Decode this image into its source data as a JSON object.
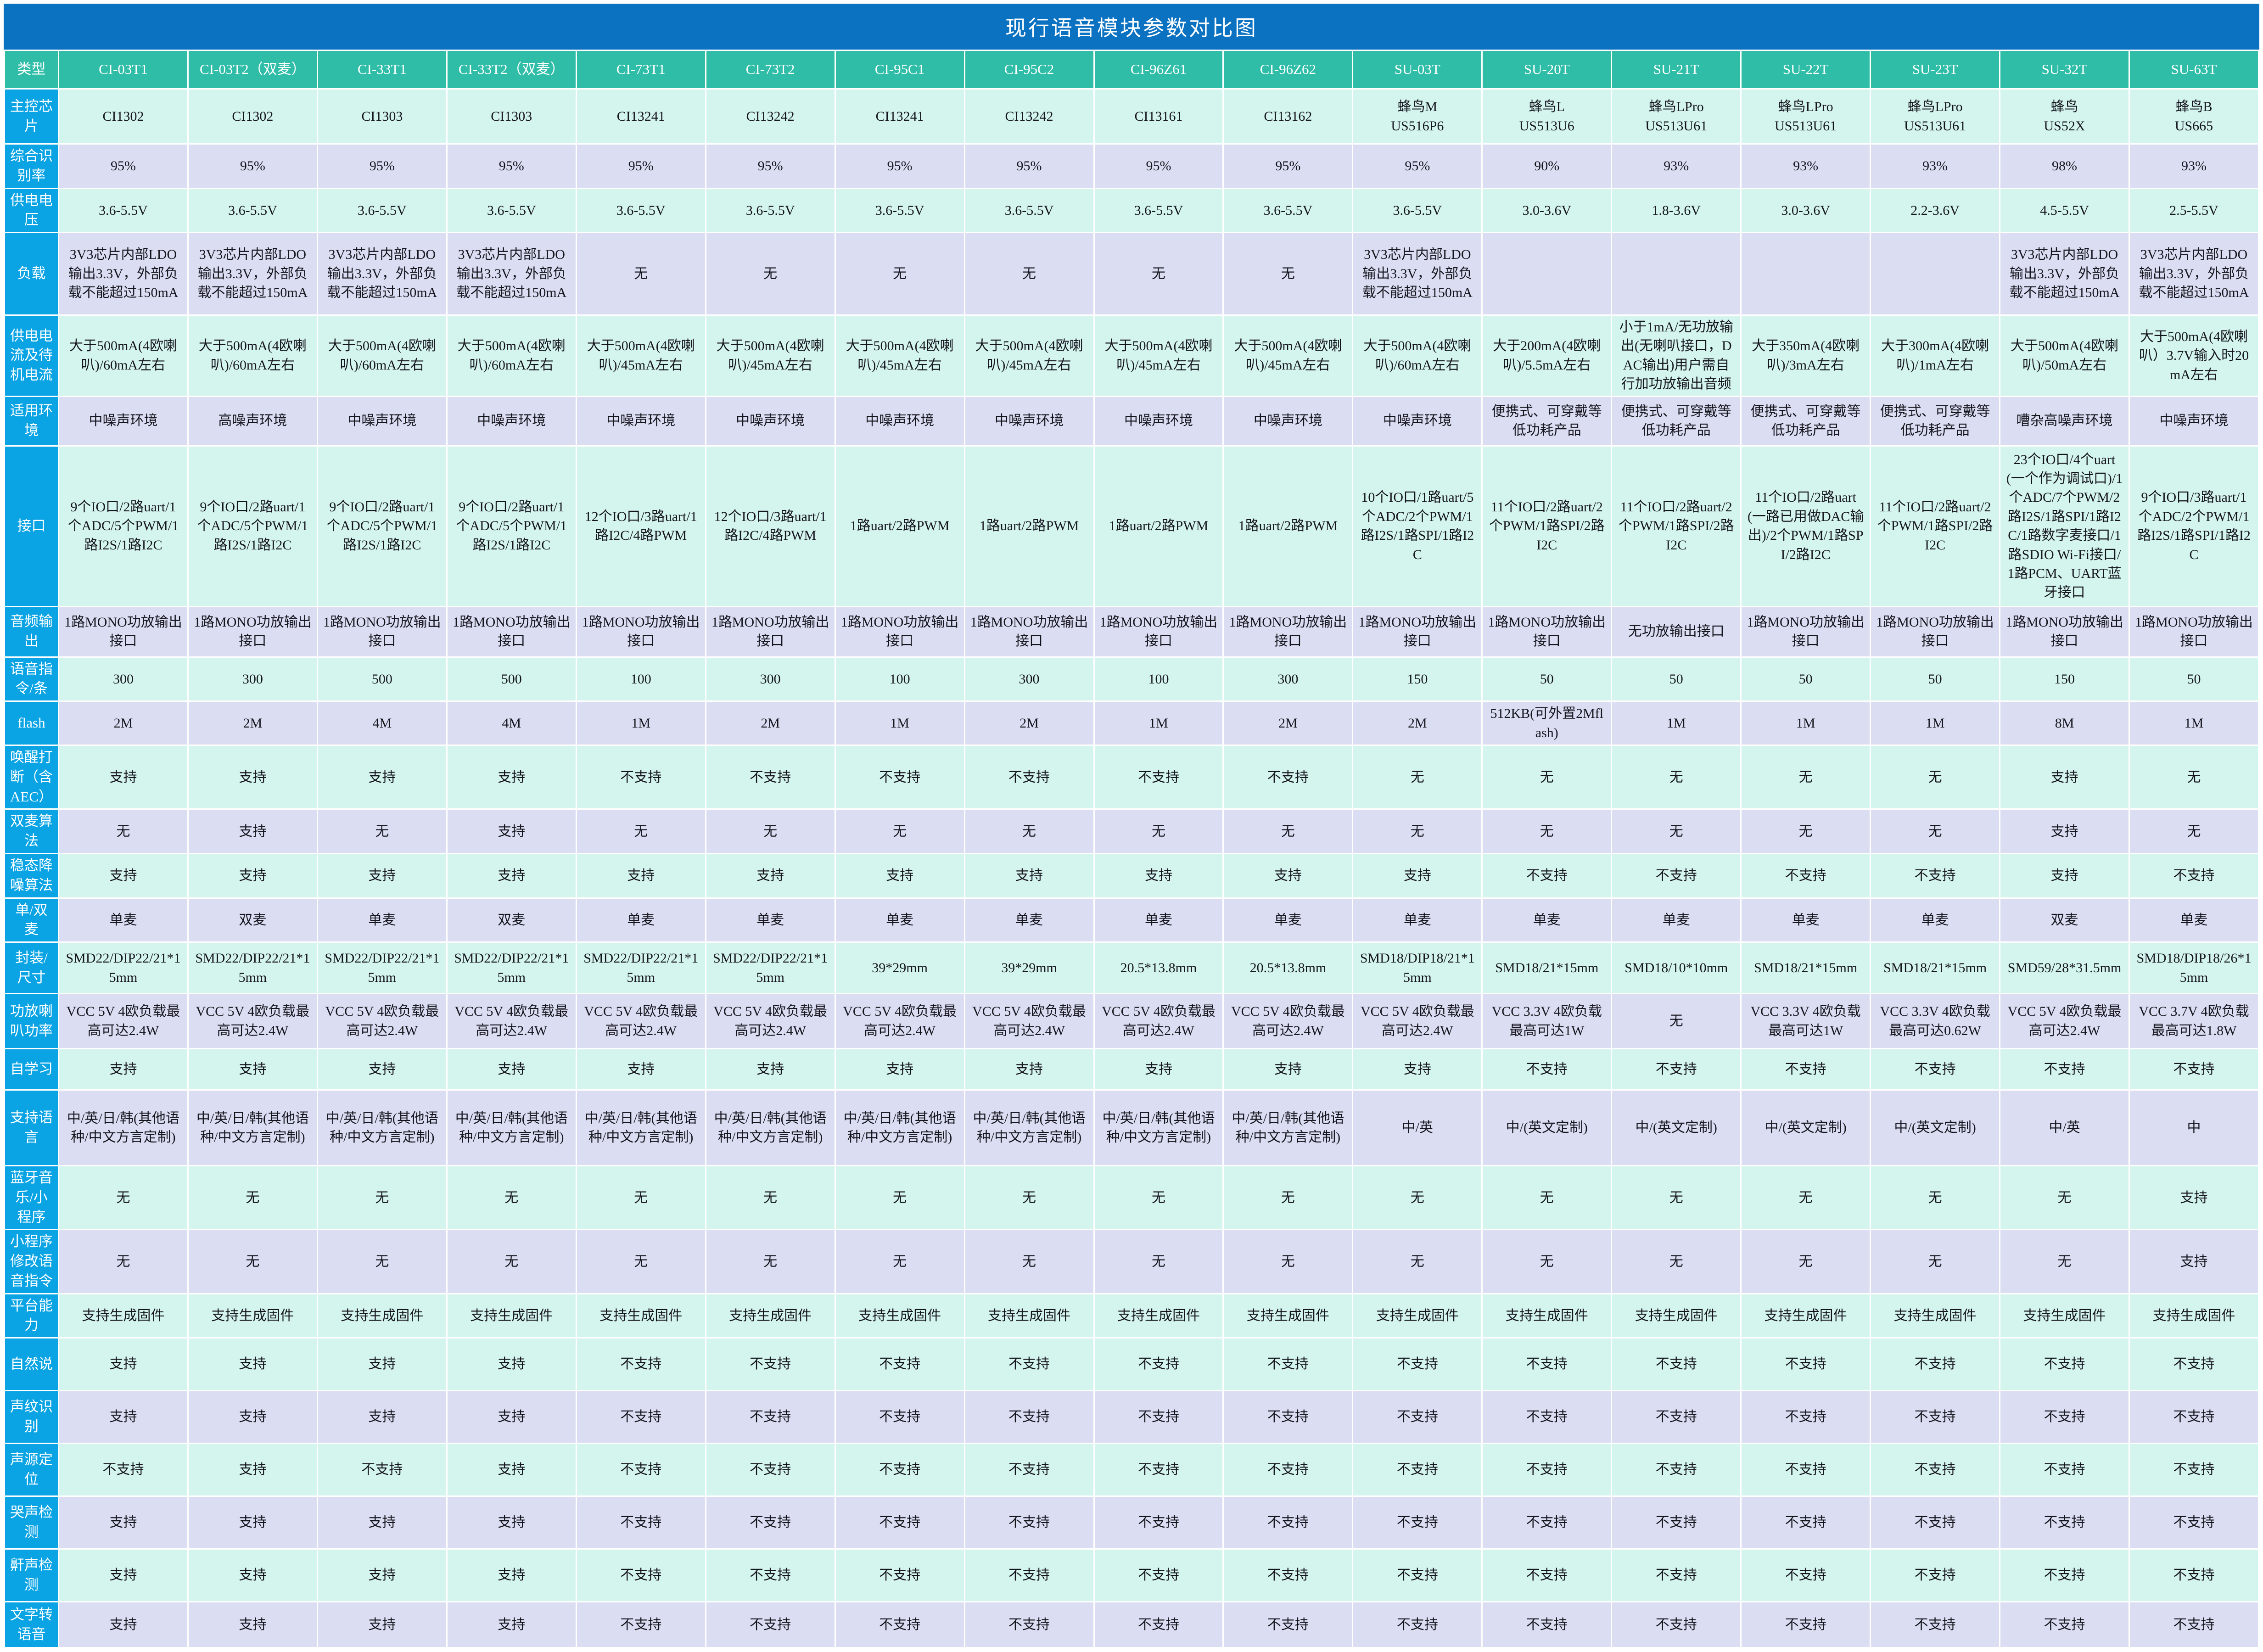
{
  "title": "现行语音模块参数对比图",
  "colors": {
    "title_bar": "#0B71C1",
    "header_teal": "#2FBDA8",
    "row_label_blue": "#0AA3E4",
    "cell_mint": "#D4F4EE",
    "cell_lavender": "#DBDDF2",
    "grid_white": "#FFFFFF",
    "text_dark": "#15151E"
  },
  "chart_data": {
    "type": "table",
    "title": "现行语音模块参数对比图",
    "corner_label": "类型",
    "columns": [
      "CI-03T1",
      "CI-03T2（双麦）",
      "CI-33T1",
      "CI-33T2（双麦）",
      "CI-73T1",
      "CI-73T2",
      "CI-95C1",
      "CI-95C2",
      "CI-96Z61",
      "CI-96Z62",
      "SU-03T",
      "SU-20T",
      "SU-21T",
      "SU-22T",
      "SU-23T",
      "SU-32T",
      "SU-63T"
    ],
    "rows": [
      {
        "label": "主控芯片",
        "values": [
          "CI1302",
          "CI1302",
          "CI1303",
          "CI1303",
          "CI13241",
          "CI13242",
          "CI13241",
          "CI13242",
          "CI13161",
          "CI13162",
          "蜂鸟M\nUS516P6",
          "蜂鸟L\nUS513U6",
          "蜂鸟LPro\nUS513U61",
          "蜂鸟LPro\nUS513U61",
          "蜂鸟LPro\nUS513U61",
          "蜂鸟\nUS52X",
          "蜂鸟B\nUS665"
        ]
      },
      {
        "label": "综合识别率",
        "values": [
          "95%",
          "95%",
          "95%",
          "95%",
          "95%",
          "95%",
          "95%",
          "95%",
          "95%",
          "95%",
          "95%",
          "90%",
          "93%",
          "93%",
          "93%",
          "98%",
          "93%"
        ]
      },
      {
        "label": "供电电压",
        "values": [
          "3.6-5.5V",
          "3.6-5.5V",
          "3.6-5.5V",
          "3.6-5.5V",
          "3.6-5.5V",
          "3.6-5.5V",
          "3.6-5.5V",
          "3.6-5.5V",
          "3.6-5.5V",
          "3.6-5.5V",
          "3.6-5.5V",
          "3.0-3.6V",
          "1.8-3.6V",
          "3.0-3.6V",
          "2.2-3.6V",
          "4.5-5.5V",
          "2.5-5.5V"
        ]
      },
      {
        "label": "负载",
        "values": [
          "3V3芯片内部LDO输出3.3V，外部负载不能超过150mA",
          "3V3芯片内部LDO输出3.3V，外部负载不能超过150mA",
          "3V3芯片内部LDO输出3.3V，外部负载不能超过150mA",
          "3V3芯片内部LDO输出3.3V，外部负载不能超过150mA",
          "无",
          "无",
          "无",
          "无",
          "无",
          "无",
          "3V3芯片内部LDO输出3.3V，外部负载不能超过150mA",
          "",
          "",
          "",
          "",
          "3V3芯片内部LDO输出3.3V，外部负载不能超过150mA",
          "3V3芯片内部LDO输出3.3V，外部负载不能超过150mA"
        ]
      },
      {
        "label": "供电电流及待机电流",
        "values": [
          "大于500mA(4欧喇叭)/60mA左右",
          "大于500mA(4欧喇叭)/60mA左右",
          "大于500mA(4欧喇叭)/60mA左右",
          "大于500mA(4欧喇叭)/60mA左右",
          "大于500mA(4欧喇叭)/45mA左右",
          "大于500mA(4欧喇叭)/45mA左右",
          "大于500mA(4欧喇叭)/45mA左右",
          "大于500mA(4欧喇叭)/45mA左右",
          "大于500mA(4欧喇叭)/45mA左右",
          "大于500mA(4欧喇叭)/45mA左右",
          "大于500mA(4欧喇叭)/60mA左右",
          "大于200mA(4欧喇叭)/5.5mA左右",
          "小于1mA/无功放输出(无喇叭接口，DAC输出)用户需自行加功放输出音频",
          "大于350mA(4欧喇叭)/3mA左右",
          "大于300mA(4欧喇叭)/1mA左右",
          "大于500mA(4欧喇叭)/50mA左右",
          "大于500mA(4欧喇叭）3.7V输入时20mA左右"
        ]
      },
      {
        "label": "适用环境",
        "values": [
          "中噪声环境",
          "高噪声环境",
          "中噪声环境",
          "中噪声环境",
          "中噪声环境",
          "中噪声环境",
          "中噪声环境",
          "中噪声环境",
          "中噪声环境",
          "中噪声环境",
          "中噪声环境",
          "便携式、可穿戴等低功耗产品",
          "便携式、可穿戴等低功耗产品",
          "便携式、可穿戴等低功耗产品",
          "便携式、可穿戴等低功耗产品",
          "嘈杂高噪声环境",
          "中噪声环境"
        ]
      },
      {
        "label": "接口",
        "values": [
          "9个IO口/2路uart/1个ADC/5个PWM/1路I2S/1路I2C",
          "9个IO口/2路uart/1个ADC/5个PWM/1路I2S/1路I2C",
          "9个IO口/2路uart/1个ADC/5个PWM/1路I2S/1路I2C",
          "9个IO口/2路uart/1个ADC/5个PWM/1路I2S/1路I2C",
          "12个IO口/3路uart/1路I2C/4路PWM",
          "12个IO口/3路uart/1路I2C/4路PWM",
          "1路uart/2路PWM",
          "1路uart/2路PWM",
          "1路uart/2路PWM",
          "1路uart/2路PWM",
          "10个IO口/1路uart/5个ADC/2个PWM/1路I2S/1路SPI/1路I2C",
          "11个IO口/2路uart/2个PWM/1路SPI/2路I2C",
          "11个IO口/2路uart/2个PWM/1路SPI/2路I2C",
          "11个IO口/2路uart(一路已用做DAC输出)/2个PWM/1路SPI/2路I2C",
          "11个IO口/2路uart/2个PWM/1路SPI/2路I2C",
          "23个IO口/4个uart(一个作为调试口)/1个ADC/7个PWM/2路I2S/1路SPI/1路I2C/1路数字麦接口/1路SDIO Wi-Fi接口/1路PCM、UART蓝牙接口",
          "9个IO口/3路uart/1个ADC/2个PWM/1路I2S/1路SPI/1路I2C"
        ]
      },
      {
        "label": "音频输出",
        "values": [
          "1路MONO功放输出接口",
          "1路MONO功放输出接口",
          "1路MONO功放输出接口",
          "1路MONO功放输出接口",
          "1路MONO功放输出接口",
          "1路MONO功放输出接口",
          "1路MONO功放输出接口",
          "1路MONO功放输出接口",
          "1路MONO功放输出接口",
          "1路MONO功放输出接口",
          "1路MONO功放输出接口",
          "1路MONO功放输出接口",
          "无功放输出接口",
          "1路MONO功放输出接口",
          "1路MONO功放输出接口",
          "1路MONO功放输出接口",
          "1路MONO功放输出接口"
        ]
      },
      {
        "label": "语音指令/条",
        "values": [
          "300",
          "300",
          "500",
          "500",
          "100",
          "300",
          "100",
          "300",
          "100",
          "300",
          "150",
          "50",
          "50",
          "50",
          "50",
          "150",
          "50"
        ]
      },
      {
        "label": "flash",
        "values": [
          "2M",
          "2M",
          "4M",
          "4M",
          "1M",
          "2M",
          "1M",
          "2M",
          "1M",
          "2M",
          "2M",
          "512KB(可外置2Mflash)",
          "1M",
          "1M",
          "1M",
          "8M",
          "1M"
        ]
      },
      {
        "label": "唤醒打断（含AEC）",
        "values": [
          "支持",
          "支持",
          "支持",
          "支持",
          "不支持",
          "不支持",
          "不支持",
          "不支持",
          "不支持",
          "不支持",
          "无",
          "无",
          "无",
          "无",
          "无",
          "支持",
          "无"
        ]
      },
      {
        "label": "双麦算法",
        "values": [
          "无",
          "支持",
          "无",
          "支持",
          "无",
          "无",
          "无",
          "无",
          "无",
          "无",
          "无",
          "无",
          "无",
          "无",
          "无",
          "支持",
          "无"
        ]
      },
      {
        "label": "稳态降噪算法",
        "values": [
          "支持",
          "支持",
          "支持",
          "支持",
          "支持",
          "支持",
          "支持",
          "支持",
          "支持",
          "支持",
          "支持",
          "不支持",
          "不支持",
          "不支持",
          "不支持",
          "支持",
          "不支持"
        ]
      },
      {
        "label": "单/双麦",
        "values": [
          "单麦",
          "双麦",
          "单麦",
          "双麦",
          "单麦",
          "单麦",
          "单麦",
          "单麦",
          "单麦",
          "单麦",
          "单麦",
          "单麦",
          "单麦",
          "单麦",
          "单麦",
          "双麦",
          "单麦"
        ]
      },
      {
        "label": "封装/尺寸",
        "values": [
          "SMD22/DIP22/21*15mm",
          "SMD22/DIP22/21*15mm",
          "SMD22/DIP22/21*15mm",
          "SMD22/DIP22/21*15mm",
          "SMD22/DIP22/21*15mm",
          "SMD22/DIP22/21*15mm",
          "39*29mm",
          "39*29mm",
          "20.5*13.8mm",
          "20.5*13.8mm",
          "SMD18/DIP18/21*15mm",
          "SMD18/21*15mm",
          "SMD18/10*10mm",
          "SMD18/21*15mm",
          "SMD18/21*15mm",
          "SMD59/28*31.5mm",
          "SMD18/DIP18/26*15mm"
        ]
      },
      {
        "label": "功放喇叭功率",
        "values": [
          "VCC 5V 4欧负载最高可达2.4W",
          "VCC 5V 4欧负载最高可达2.4W",
          "VCC 5V 4欧负载最高可达2.4W",
          "VCC 5V 4欧负载最高可达2.4W",
          "VCC 5V 4欧负载最高可达2.4W",
          "VCC 5V 4欧负载最高可达2.4W",
          "VCC 5V 4欧负载最高可达2.4W",
          "VCC 5V 4欧负载最高可达2.4W",
          "VCC 5V 4欧负载最高可达2.4W",
          "VCC 5V 4欧负载最高可达2.4W",
          "VCC 5V 4欧负载最高可达2.4W",
          "VCC 3.3V 4欧负载最高可达1W",
          "无",
          "VCC 3.3V 4欧负载最高可达1W",
          "VCC 3.3V 4欧负载最高可达0.62W",
          "VCC 5V 4欧负载最高可达2.4W",
          "VCC 3.7V 4欧负载最高可达1.8W"
        ]
      },
      {
        "label": "自学习",
        "values": [
          "支持",
          "支持",
          "支持",
          "支持",
          "支持",
          "支持",
          "支持",
          "支持",
          "支持",
          "支持",
          "支持",
          "不支持",
          "不支持",
          "不支持",
          "不支持",
          "不支持",
          "不支持"
        ]
      },
      {
        "label": "支持语言",
        "values": [
          "中/英/日/韩(其他语种/中文方言定制)",
          "中/英/日/韩(其他语种/中文方言定制)",
          "中/英/日/韩(其他语种/中文方言定制)",
          "中/英/日/韩(其他语种/中文方言定制)",
          "中/英/日/韩(其他语种/中文方言定制)",
          "中/英/日/韩(其他语种/中文方言定制)",
          "中/英/日/韩(其他语种/中文方言定制)",
          "中/英/日/韩(其他语种/中文方言定制)",
          "中/英/日/韩(其他语种/中文方言定制)",
          "中/英/日/韩(其他语种/中文方言定制)",
          "中/英",
          "中/(英文定制)",
          "中/(英文定制)",
          "中/(英文定制)",
          "中/(英文定制)",
          "中/英",
          "中"
        ]
      },
      {
        "label": "蓝牙音乐/小程序",
        "values": [
          "无",
          "无",
          "无",
          "无",
          "无",
          "无",
          "无",
          "无",
          "无",
          "无",
          "无",
          "无",
          "无",
          "无",
          "无",
          "无",
          "支持"
        ]
      },
      {
        "label": "小程序修改语音指令",
        "values": [
          "无",
          "无",
          "无",
          "无",
          "无",
          "无",
          "无",
          "无",
          "无",
          "无",
          "无",
          "无",
          "无",
          "无",
          "无",
          "无",
          "支持"
        ]
      },
      {
        "label": "平台能力",
        "values": [
          "支持生成固件",
          "支持生成固件",
          "支持生成固件",
          "支持生成固件",
          "支持生成固件",
          "支持生成固件",
          "支持生成固件",
          "支持生成固件",
          "支持生成固件",
          "支持生成固件",
          "支持生成固件",
          "支持生成固件",
          "支持生成固件",
          "支持生成固件",
          "支持生成固件",
          "支持生成固件",
          "支持生成固件"
        ]
      },
      {
        "label": "自然说",
        "values": [
          "支持",
          "支持",
          "支持",
          "支持",
          "不支持",
          "不支持",
          "不支持",
          "不支持",
          "不支持",
          "不支持",
          "不支持",
          "不支持",
          "不支持",
          "不支持",
          "不支持",
          "不支持",
          "不支持"
        ]
      },
      {
        "label": "声纹识别",
        "values": [
          "支持",
          "支持",
          "支持",
          "支持",
          "不支持",
          "不支持",
          "不支持",
          "不支持",
          "不支持",
          "不支持",
          "不支持",
          "不支持",
          "不支持",
          "不支持",
          "不支持",
          "不支持",
          "不支持"
        ]
      },
      {
        "label": "声源定位",
        "values": [
          "不支持",
          "支持",
          "不支持",
          "支持",
          "不支持",
          "不支持",
          "不支持",
          "不支持",
          "不支持",
          "不支持",
          "不支持",
          "不支持",
          "不支持",
          "不支持",
          "不支持",
          "不支持",
          "不支持"
        ]
      },
      {
        "label": "哭声检测",
        "values": [
          "支持",
          "支持",
          "支持",
          "支持",
          "不支持",
          "不支持",
          "不支持",
          "不支持",
          "不支持",
          "不支持",
          "不支持",
          "不支持",
          "不支持",
          "不支持",
          "不支持",
          "不支持",
          "不支持"
        ]
      },
      {
        "label": "鼾声检测",
        "values": [
          "支持",
          "支持",
          "支持",
          "支持",
          "不支持",
          "不支持",
          "不支持",
          "不支持",
          "不支持",
          "不支持",
          "不支持",
          "不支持",
          "不支持",
          "不支持",
          "不支持",
          "不支持",
          "不支持"
        ]
      },
      {
        "label": "文字转语音",
        "values": [
          "支持",
          "支持",
          "支持",
          "支持",
          "不支持",
          "不支持",
          "不支持",
          "不支持",
          "不支持",
          "不支持",
          "不支持",
          "不支持",
          "不支持",
          "不支持",
          "不支持",
          "不支持",
          "不支持"
        ]
      }
    ]
  }
}
